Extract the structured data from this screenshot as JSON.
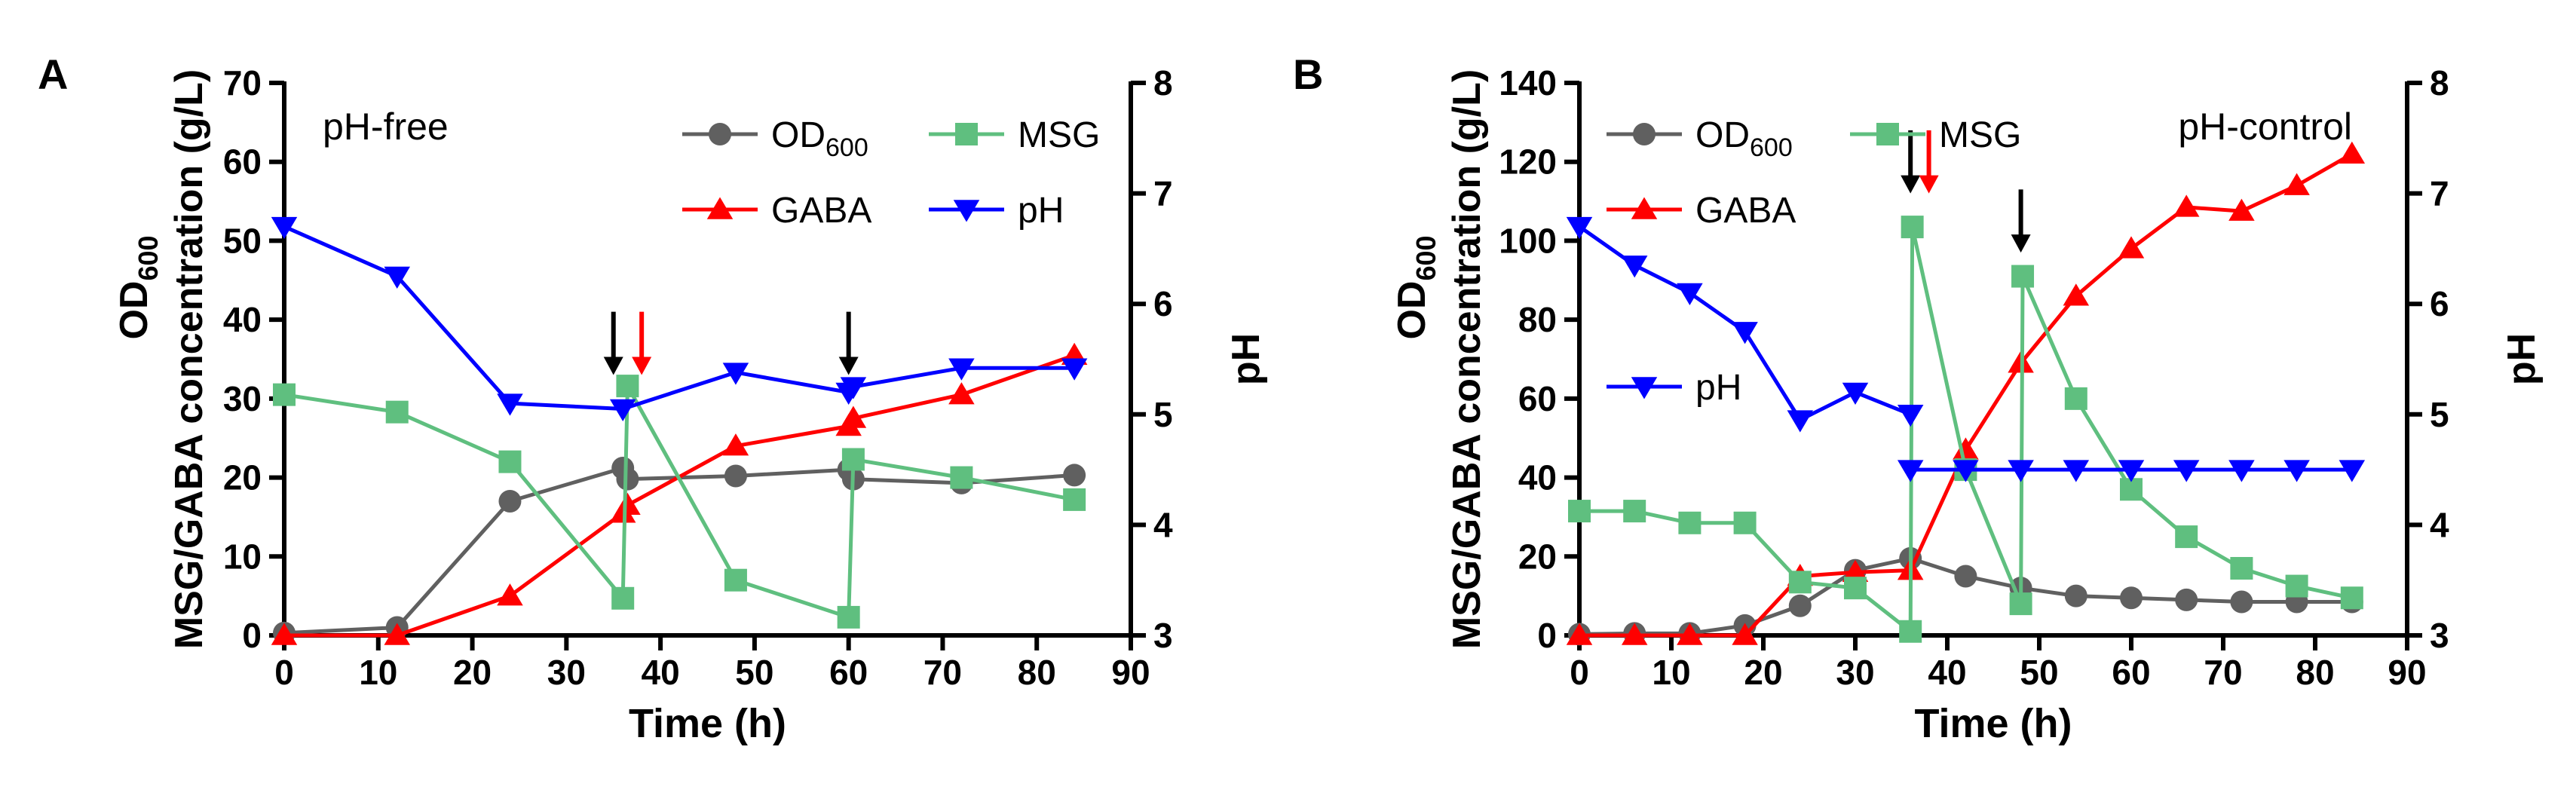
{
  "colors": {
    "od": "#606060",
    "gaba": "#ff0000",
    "msg": "#5fbf7f",
    "ph": "#0000ff",
    "axis": "#000000",
    "arrow_black": "#000000",
    "arrow_red": "#ff0000"
  },
  "chart_data": [
    {
      "type": "line",
      "panel": "A",
      "annotation": "pH-free",
      "xlabel": "Time (h)",
      "ylabel_main": "MSG/GABA concentration (g/L)",
      "ylabel_od_base": "OD",
      "ylabel_od_sub": "600",
      "ylabel_right": "pH",
      "xlim": [
        0,
        90
      ],
      "ylim": [
        0,
        70
      ],
      "y2lim": [
        3,
        8
      ],
      "xticks": [
        0,
        10,
        20,
        30,
        40,
        50,
        60,
        70,
        80,
        90
      ],
      "yticks": [
        0,
        10,
        20,
        30,
        40,
        50,
        60,
        70
      ],
      "y2ticks": [
        3,
        4,
        5,
        6,
        7,
        8
      ],
      "legend": [
        {
          "key": "od",
          "base": "OD",
          "sub": "600"
        },
        {
          "key": "msg",
          "base": "MSG",
          "sub": ""
        },
        {
          "key": "gaba",
          "base": "GABA",
          "sub": ""
        },
        {
          "key": "ph",
          "base": "pH",
          "sub": ""
        }
      ],
      "series": [
        {
          "key": "od",
          "name": "OD600",
          "marker": "circle",
          "axis": "left",
          "x": [
            0,
            12,
            24,
            36,
            36.5,
            48,
            60,
            60.5,
            72,
            84
          ],
          "y": [
            0.3,
            1.0,
            17.0,
            21.2,
            19.8,
            20.2,
            21.0,
            19.8,
            19.3,
            20.3
          ]
        },
        {
          "key": "gaba",
          "name": "GABA",
          "marker": "triangle-up",
          "axis": "left",
          "x": [
            0,
            12,
            24,
            36,
            36.5,
            48,
            60,
            60.5,
            72,
            84
          ],
          "y": [
            0,
            0,
            5.0,
            15.5,
            16.5,
            24.0,
            26.5,
            27.5,
            30.5,
            35.5
          ]
        },
        {
          "key": "msg",
          "name": "MSG",
          "marker": "square",
          "axis": "left",
          "x": [
            0,
            12,
            24,
            36,
            36.5,
            48,
            60,
            60.5,
            72,
            84
          ],
          "y": [
            30.5,
            28.3,
            22.0,
            4.7,
            31.6,
            7.0,
            2.3,
            22.3,
            20.0,
            17.2
          ]
        },
        {
          "key": "ph",
          "name": "pH",
          "marker": "triangle-down",
          "axis": "right",
          "x": [
            0,
            12,
            24,
            36,
            48,
            60,
            60.5,
            72,
            84
          ],
          "y": [
            6.7,
            6.25,
            5.1,
            5.05,
            5.38,
            5.2,
            5.25,
            5.42,
            5.42
          ]
        }
      ],
      "arrows": [
        {
          "x": 35,
          "color": "arrow_black",
          "y_top": 41,
          "y_bottom": 33
        },
        {
          "x": 38,
          "color": "arrow_red",
          "y_top": 41,
          "y_bottom": 33
        },
        {
          "x": 60,
          "color": "arrow_black",
          "y_top": 41,
          "y_bottom": 33
        }
      ]
    },
    {
      "type": "line",
      "panel": "B",
      "annotation": "pH-control",
      "xlabel": "Time (h)",
      "ylabel_main": "MSG/GABA concentration (g/L)",
      "ylabel_od_base": "OD",
      "ylabel_od_sub": "600",
      "ylabel_right": "pH",
      "xlim": [
        0,
        90
      ],
      "ylim": [
        0,
        140
      ],
      "y2lim": [
        3,
        8
      ],
      "xticks": [
        0,
        10,
        20,
        30,
        40,
        50,
        60,
        70,
        80,
        90
      ],
      "yticks": [
        0,
        20,
        40,
        60,
        80,
        100,
        120,
        140
      ],
      "y2ticks": [
        3,
        4,
        5,
        6,
        7,
        8
      ],
      "legend": [
        {
          "key": "od",
          "base": "OD",
          "sub": "600"
        },
        {
          "key": "msg",
          "base": "MSG",
          "sub": ""
        },
        {
          "key": "gaba",
          "base": "GABA",
          "sub": ""
        },
        {
          "key": "ph",
          "base": "pH",
          "sub": ""
        }
      ],
      "series": [
        {
          "key": "od",
          "name": "OD600",
          "marker": "circle",
          "axis": "left",
          "x": [
            0,
            6,
            12,
            18,
            24,
            30,
            36,
            42,
            48,
            54,
            60,
            66,
            72,
            78,
            84
          ],
          "y": [
            0.3,
            0.5,
            0.5,
            2.5,
            7.5,
            16.5,
            19.5,
            15.0,
            12.0,
            10.0,
            9.5,
            9.0,
            8.5,
            8.5,
            8.5
          ]
        },
        {
          "key": "gaba",
          "name": "GABA",
          "marker": "triangle-up",
          "axis": "left",
          "x": [
            0,
            6,
            12,
            18,
            24,
            30,
            36,
            42,
            48,
            54,
            60,
            66,
            72,
            78,
            84
          ],
          "y": [
            0,
            0,
            0,
            0,
            15.0,
            16.0,
            16.5,
            47.0,
            69.0,
            86.0,
            98.0,
            108.5,
            107.5,
            114.0,
            122.0
          ]
        },
        {
          "key": "msg",
          "name": "MSG",
          "marker": "square",
          "axis": "left",
          "x": [
            0,
            6,
            12,
            18,
            24,
            30,
            36,
            36.2,
            42,
            48,
            48.2,
            54,
            60,
            66,
            72,
            78,
            84
          ],
          "y": [
            31.5,
            31.5,
            28.5,
            28.5,
            13.5,
            12.0,
            1.0,
            103.5,
            42.0,
            8.0,
            91.0,
            60.0,
            37.0,
            25.0,
            17.0,
            12.5,
            9.5
          ]
        },
        {
          "key": "ph",
          "name": "pH",
          "marker": "triangle-down",
          "axis": "right",
          "x": [
            0,
            6,
            12,
            18,
            24,
            30,
            36
          ],
          "y": [
            6.7,
            6.35,
            6.1,
            5.75,
            4.95,
            5.2,
            5.0
          ]
        },
        {
          "key": "ph",
          "name": "pH-control",
          "marker": "triangle-down",
          "axis": "right",
          "x": [
            36,
            42,
            48,
            54,
            60,
            66,
            72,
            78,
            84
          ],
          "y": [
            4.5,
            4.5,
            4.5,
            4.5,
            4.5,
            4.5,
            4.5,
            4.5,
            4.5
          ]
        }
      ],
      "arrows": [
        {
          "x": 36,
          "color": "arrow_black",
          "y_top": 128,
          "y_bottom": 112
        },
        {
          "x": 38,
          "color": "arrow_red",
          "y_top": 128,
          "y_bottom": 112
        },
        {
          "x": 48,
          "color": "arrow_black",
          "y_top": 113,
          "y_bottom": 97
        }
      ]
    }
  ]
}
